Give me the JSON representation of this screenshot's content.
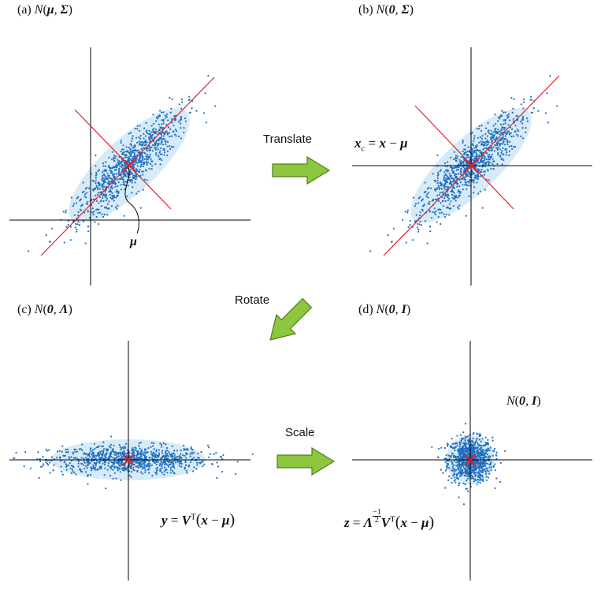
{
  "panels": {
    "a": {
      "tag": "(a)",
      "N": "N",
      "arg1": "μ",
      "arg2": "Σ"
    },
    "b": {
      "tag": "(b)",
      "N": "N",
      "arg1": "0",
      "arg2": "Σ"
    },
    "c": {
      "tag": "(c)",
      "N": "N",
      "arg1": "0",
      "arg2": "Λ"
    },
    "d": {
      "tag": "(d)",
      "N": "N",
      "arg1": "0",
      "arg2": "I"
    }
  },
  "arrows": {
    "translate": "Translate",
    "rotate": "Rotate",
    "scale": "Scale"
  },
  "annotations": {
    "mu": "μ",
    "nd_inset": {
      "N": "N",
      "arg1": "0",
      "arg2": "I"
    }
  },
  "equations": {
    "xc": {
      "lhs": "x",
      "sub": "c",
      "eq": "=",
      "x": "x",
      "minus": "−",
      "mu": "μ"
    },
    "y": {
      "lhs": "y",
      "eq": "=",
      "V": "V",
      "T": "T",
      "x": "x",
      "minus": "−",
      "mu": "μ"
    },
    "z": {
      "lhs": "z",
      "eq": "=",
      "Lambda": "Λ",
      "exp_num": "−1",
      "exp_den": "2",
      "V": "V",
      "T": "T",
      "x": "x",
      "minus": "−",
      "mu": "μ"
    }
  },
  "colors": {
    "points": "#1f6fbf",
    "ellipse": "#cfe6f6",
    "principal_axes": "#e0202a",
    "mean_marker": "#e0202a",
    "axes": "#000000",
    "arrow_fill": "#8dc63f",
    "arrow_stroke": "#4f7f1e"
  }
}
